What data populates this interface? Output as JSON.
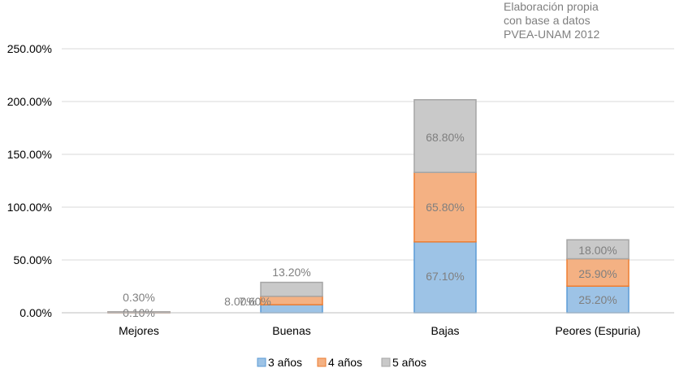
{
  "source_note": {
    "line1": "Elaboración propia",
    "line2": "con base a datos",
    "line3": "PVEA-UNAM  2012"
  },
  "colors": {
    "s1_fill": "#9dc3e6",
    "s1_stroke": "#5b9bd5",
    "s2_fill": "#f4b183",
    "s2_stroke": "#ed7d31",
    "s3_fill": "#c9c9c9",
    "s3_stroke": "#a5a5a5",
    "grid": "#d9d9d9",
    "axis": "#bfbfbf",
    "label": "#7f7f7f"
  },
  "chart_data": {
    "type": "bar",
    "stacked": true,
    "categories": [
      "Mejores",
      "Buenas",
      "Bajas",
      "Peores (Espuria)"
    ],
    "series": [
      {
        "name": "3 años",
        "values": [
          0.0,
          7.6,
          67.1,
          25.2
        ],
        "labels": [
          "",
          "7.60%",
          "67.10%",
          "25.20%"
        ]
      },
      {
        "name": "4 años",
        "values": [
          0.1,
          8.0,
          65.8,
          25.9
        ],
        "labels": [
          "0.10%",
          "8.00%",
          "65.80%",
          "25.90%"
        ]
      },
      {
        "name": "5 años",
        "values": [
          0.3,
          13.2,
          68.8,
          18.0
        ],
        "labels": [
          "0.30%",
          "13.20%",
          "68.80%",
          "18.00%"
        ]
      }
    ],
    "yticks": [
      "0.00%",
      "50.00%",
      "100.00%",
      "150.00%",
      "200.00%",
      "250.00%"
    ],
    "ylim": [
      0,
      250
    ],
    "grid": true,
    "legend_position": "bottom"
  }
}
